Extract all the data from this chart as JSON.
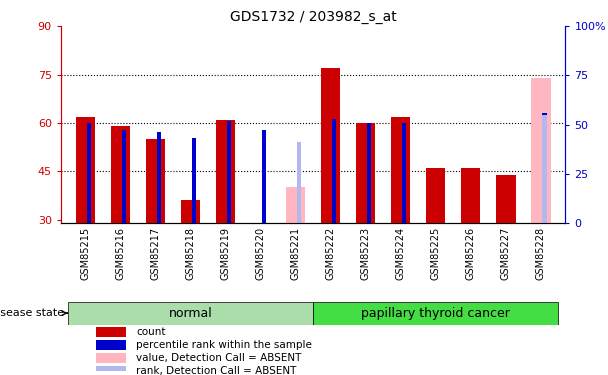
{
  "title": "GDS1732 / 203982_s_at",
  "samples": [
    "GSM85215",
    "GSM85216",
    "GSM85217",
    "GSM85218",
    "GSM85219",
    "GSM85220",
    "GSM85221",
    "GSM85222",
    "GSM85223",
    "GSM85224",
    "GSM85225",
    "GSM85226",
    "GSM85227",
    "GSM85228"
  ],
  "count_values": [
    62,
    59,
    55,
    36,
    61,
    null,
    null,
    77,
    60,
    62,
    46,
    46,
    44,
    null
  ],
  "rank_values": [
    51,
    47,
    46,
    43,
    52,
    47,
    null,
    53,
    51,
    51,
    null,
    null,
    null,
    56
  ],
  "absent_count": [
    null,
    null,
    null,
    null,
    null,
    null,
    40,
    null,
    null,
    null,
    null,
    null,
    null,
    74
  ],
  "absent_rank": [
    null,
    null,
    null,
    null,
    null,
    null,
    41,
    null,
    null,
    null,
    null,
    null,
    null,
    55
  ],
  "normal_group_indices": [
    0,
    1,
    2,
    3,
    4,
    5,
    6
  ],
  "cancer_group_indices": [
    7,
    8,
    9,
    10,
    11,
    12,
    13
  ],
  "group_labels": [
    "normal",
    "papillary thyroid cancer"
  ],
  "ylim_left": [
    29,
    90
  ],
  "ylim_right": [
    0,
    100
  ],
  "yticks_left": [
    30,
    45,
    60,
    75,
    90
  ],
  "yticks_right": [
    0,
    25,
    50,
    75,
    100
  ],
  "color_count": "#cc0000",
  "color_rank": "#0000cc",
  "color_absent_count": "#ffb6c1",
  "color_absent_rank": "#b0b8ee",
  "normal_bg": "#aaddaa",
  "cancer_bg": "#44dd44",
  "tick_bg": "#d8d8d8",
  "legend_items": [
    {
      "label": "count",
      "color": "#cc0000"
    },
    {
      "label": "percentile rank within the sample",
      "color": "#0000cc"
    },
    {
      "label": "value, Detection Call = ABSENT",
      "color": "#ffb6c1"
    },
    {
      "label": "rank, Detection Call = ABSENT",
      "color": "#b0b8ee"
    }
  ],
  "disease_state_label": "disease state"
}
